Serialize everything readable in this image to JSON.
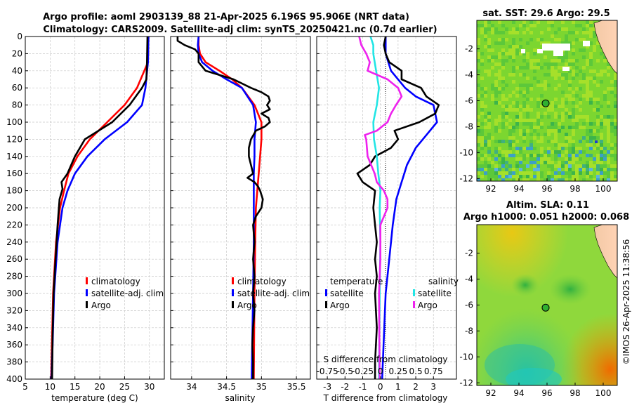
{
  "header": {
    "title_line1": "Argo profile: aoml 2903139_88 21-Apr-2025 6.196S 95.906E (NRT data)",
    "title_line2": "Climatology: CARS2009. Satellite-adj clim: synTS_20250421.nc (0.7d earlier)"
  },
  "footer": {
    "credit": "©IMOS 26-Apr-2025 11:38:56"
  },
  "colors": {
    "climatology": "#ff0000",
    "satellite": "#0000ff",
    "argo": "#000000",
    "sal_satellite": "#22e5e5",
    "sal_argo": "#ee22ee",
    "grid": "#c8c8c8"
  },
  "chart_data": [
    {
      "id": "temperature",
      "type": "line",
      "xlabel": "temperature (deg C)",
      "xlim": [
        5,
        33
      ],
      "xticks": [
        5,
        10,
        15,
        20,
        25,
        30
      ],
      "ylim": [
        0,
        400
      ],
      "yticks": [
        0,
        20,
        40,
        60,
        80,
        100,
        120,
        140,
        160,
        180,
        200,
        220,
        240,
        260,
        280,
        300,
        320,
        340,
        360,
        380,
        400
      ],
      "legend": [
        "climatology",
        "satellite-adj. clim",
        "Argo"
      ],
      "series": [
        {
          "name": "climatology",
          "color": "#ff0000",
          "depth": [
            0,
            30,
            60,
            80,
            100,
            120,
            140,
            160,
            180,
            200,
            240,
            300,
            400
          ],
          "values": [
            29.8,
            29.7,
            27.5,
            25.0,
            21.5,
            18.0,
            15.5,
            13.7,
            12.8,
            12.0,
            11.2,
            10.6,
            10.2
          ]
        },
        {
          "name": "satellite-adj. clim",
          "color": "#0000ff",
          "depth": [
            0,
            30,
            60,
            80,
            100,
            120,
            140,
            160,
            180,
            200,
            240,
            300,
            400
          ],
          "values": [
            29.8,
            29.7,
            29.2,
            28.5,
            25.5,
            21.0,
            17.5,
            15.0,
            13.5,
            12.5,
            11.5,
            10.8,
            10.3
          ]
        },
        {
          "name": "Argo",
          "color": "#000000",
          "depth": [
            0,
            30,
            50,
            60,
            80,
            100,
            120,
            140,
            160,
            170,
            178,
            190,
            220,
            240,
            270,
            300,
            350,
            400
          ],
          "values": [
            29.6,
            29.5,
            29.4,
            28.5,
            26.0,
            22.5,
            17.0,
            15.0,
            13.5,
            12.3,
            12.5,
            11.9,
            11.5,
            11.3,
            11.0,
            10.7,
            10.5,
            10.4
          ]
        }
      ]
    },
    {
      "id": "salinity",
      "type": "line",
      "xlabel": "salinity",
      "xlim": [
        33.7,
        35.7
      ],
      "xticks": [
        34,
        34.5,
        35,
        35.5
      ],
      "xtick_labels": [
        "34",
        "34.5",
        "35",
        "35.5"
      ],
      "ylim": [
        0,
        400
      ],
      "legend": [
        "climatology",
        "satellite-adj. clim",
        "Argo"
      ],
      "series": [
        {
          "name": "climatology",
          "color": "#ff0000",
          "depth": [
            0,
            10,
            20,
            30,
            40,
            50,
            60,
            80,
            100,
            120,
            140,
            160,
            180,
            200,
            240,
            300,
            400
          ],
          "values": [
            34.1,
            34.1,
            34.12,
            34.2,
            34.4,
            34.58,
            34.72,
            34.9,
            35.0,
            35.0,
            34.98,
            34.96,
            34.94,
            34.92,
            34.91,
            34.9,
            34.89
          ]
        },
        {
          "name": "satellite-adj. clim",
          "color": "#0000ff",
          "depth": [
            0,
            10,
            20,
            30,
            40,
            50,
            60,
            80,
            100,
            120,
            140,
            160,
            180,
            200,
            240,
            300,
            400
          ],
          "values": [
            34.1,
            34.09,
            34.1,
            34.15,
            34.3,
            34.5,
            34.72,
            34.88,
            34.92,
            34.9,
            34.9,
            34.89,
            34.89,
            34.89,
            34.89,
            34.88,
            34.86
          ]
        },
        {
          "name": "Argo",
          "color": "#000000",
          "depth": [
            0,
            5,
            10,
            15,
            20,
            30,
            40,
            50,
            60,
            65,
            70,
            75,
            80,
            85,
            90,
            95,
            100,
            105,
            110,
            120,
            130,
            140,
            150,
            160,
            165,
            170,
            175,
            180,
            190,
            200,
            210,
            220,
            240,
            260,
            280,
            300,
            320,
            340,
            360,
            380,
            400
          ],
          "values": [
            33.8,
            33.8,
            33.9,
            34.05,
            34.1,
            34.1,
            34.2,
            34.6,
            34.85,
            35.0,
            35.1,
            35.12,
            35.08,
            35.12,
            35.0,
            35.1,
            35.12,
            35.05,
            34.92,
            34.85,
            34.82,
            34.82,
            34.85,
            34.88,
            34.8,
            34.9,
            34.95,
            34.98,
            35.02,
            35.0,
            34.92,
            34.88,
            34.9,
            34.88,
            34.9,
            34.88,
            34.9,
            34.88,
            34.87,
            34.88,
            34.88
          ]
        }
      ]
    },
    {
      "id": "difference",
      "type": "line",
      "xlabel": "T difference from climatology",
      "xlim": [
        -3.6,
        4.3
      ],
      "xticks": [
        -3,
        -2,
        -1,
        0,
        1,
        2,
        3
      ],
      "xtick_labels": [
        "-3",
        "-2",
        "-1",
        "0",
        "1",
        "2",
        "3"
      ],
      "ylim": [
        0,
        400
      ],
      "top_label": "S difference from climatology",
      "top_ticks": [
        "-0.75",
        "-0.5",
        "-0.25",
        "0",
        "0.25",
        "0.5",
        "0.75"
      ],
      "legend_temperature_title": "temperature",
      "legend_salinity_title": "salinity",
      "legend_temperature": [
        "satellite",
        "Argo"
      ],
      "legend_salinity": [
        "satellite",
        "Argo"
      ],
      "series": [
        {
          "name": "T satellite",
          "color": "#0000ff",
          "depth": [
            0,
            20,
            40,
            60,
            70,
            80,
            100,
            115,
            130,
            150,
            170,
            190,
            220,
            260,
            300,
            400
          ],
          "values": [
            0.3,
            0.3,
            0.6,
            1.4,
            2.0,
            3.0,
            3.2,
            2.6,
            2.0,
            1.5,
            1.2,
            0.9,
            0.7,
            0.5,
            0.3,
            0.1
          ]
        },
        {
          "name": "T Argo",
          "color": "#000000",
          "depth": [
            0,
            10,
            20,
            30,
            40,
            50,
            60,
            70,
            80,
            90,
            100,
            110,
            120,
            130,
            140,
            150,
            160,
            170,
            180,
            200,
            220,
            240,
            260,
            280,
            300,
            340,
            380,
            400
          ],
          "values": [
            0.3,
            0.2,
            0.3,
            0.5,
            1.2,
            1.2,
            2.3,
            2.6,
            3.3,
            3.1,
            2.2,
            0.8,
            1.0,
            0.6,
            -0.3,
            -0.6,
            -1.3,
            -1.0,
            -0.3,
            -0.4,
            -0.3,
            -0.2,
            -0.3,
            -0.2,
            -0.3,
            -0.2,
            -0.3,
            -0.3
          ]
        },
        {
          "name": "S satellite",
          "color": "#22e5e5",
          "depth": [
            0,
            10,
            20,
            40,
            60,
            80,
            100,
            120,
            140,
            160,
            180,
            200,
            240,
            300,
            400
          ],
          "values": [
            -0.14,
            -0.1,
            -0.1,
            -0.06,
            -0.02,
            -0.05,
            -0.1,
            -0.09,
            -0.05,
            -0.03,
            0.0,
            -0.01,
            0.0,
            -0.01,
            -0.02
          ]
        },
        {
          "name": "S Argo",
          "color": "#ee22ee",
          "depth": [
            0,
            10,
            20,
            30,
            40,
            50,
            60,
            70,
            80,
            90,
            100,
            110,
            115,
            120,
            140,
            160,
            170,
            180,
            190,
            200,
            220,
            240,
            260,
            300,
            400
          ],
          "values": [
            -0.3,
            -0.27,
            -0.2,
            -0.15,
            -0.18,
            0.1,
            0.25,
            0.3,
            0.22,
            0.15,
            0.1,
            -0.05,
            -0.22,
            -0.2,
            -0.18,
            -0.08,
            -0.05,
            0.05,
            0.1,
            0.1,
            0.0,
            0.0,
            0.0,
            -0.02,
            -0.01
          ]
        }
      ]
    },
    {
      "id": "sst_map",
      "type": "heatmap",
      "title": "sat. SST: 29.6 Argo: 29.5",
      "xlim": [
        91,
        101
      ],
      "ylim": [
        -12.2,
        0.2
      ],
      "xticks": [
        92,
        94,
        96,
        98,
        100
      ],
      "yticks": [
        -2,
        -4,
        -6,
        -8,
        -10,
        -12
      ],
      "marker": {
        "lon": 95.9,
        "lat": -6.2
      }
    },
    {
      "id": "sla_map",
      "type": "heatmap",
      "title_line1": "Altim. SLA: 0.11",
      "title_line2": "Argo h1000: 0.051 h2000: 0.068",
      "xlim": [
        91,
        101
      ],
      "ylim": [
        -12.2,
        0.2
      ],
      "xticks": [
        92,
        94,
        96,
        98,
        100
      ],
      "yticks": [
        -2,
        -4,
        -6,
        -8,
        -10,
        -12
      ],
      "marker": {
        "lon": 95.9,
        "lat": -6.2
      }
    }
  ]
}
